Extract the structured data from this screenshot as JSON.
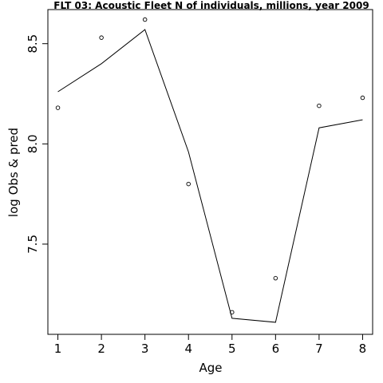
{
  "chart_data": {
    "type": "line",
    "title": "FLT 03: Acoustic Fleet  N of individuals, millions, year 2009",
    "xlabel": "Age",
    "ylabel": "log Obs & pred",
    "x": [
      1,
      2,
      3,
      4,
      5,
      6,
      7,
      8
    ],
    "xlim": [
      0.77,
      8.23
    ],
    "ylim": [
      7.05,
      8.67
    ],
    "x_ticks": [
      "1",
      "2",
      "3",
      "4",
      "5",
      "6",
      "7",
      "8"
    ],
    "y_ticks": [
      "7.5",
      "8.0",
      "8.5"
    ],
    "grid": false,
    "series": [
      {
        "type": "scatter",
        "marker": "open-circle",
        "values": [
          8.18,
          8.53,
          8.62,
          7.8,
          7.16,
          7.33,
          8.19,
          8.23
        ]
      },
      {
        "type": "line",
        "values": [
          8.26,
          8.4,
          8.57,
          7.96,
          7.13,
          7.11,
          8.08,
          8.12
        ]
      }
    ]
  }
}
